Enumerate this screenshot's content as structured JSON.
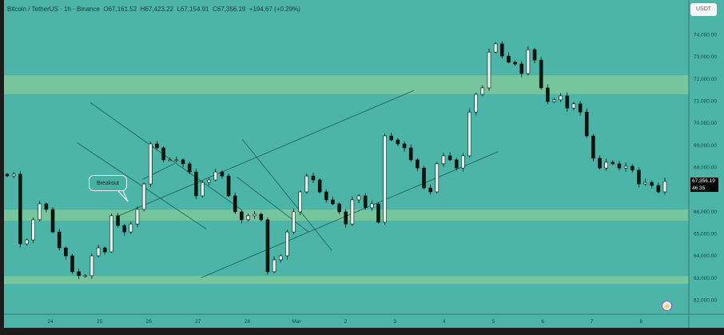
{
  "header": {
    "symbol": "Bitcoin / TetherUS · 1h · Binance",
    "open": "O67,161.52",
    "high": "H67,423.22",
    "low": "L67,154.91",
    "close": "C67,356.19",
    "change": "+194.67 (+0.29%)"
  },
  "currency_button": "USDT",
  "last_price": {
    "price": "67,356.19",
    "countdown": "46:35"
  },
  "annotation": {
    "label": "Breakout"
  },
  "icons": {
    "bolt": "lightning-icon"
  },
  "colors": {
    "background": "#4cb5a7",
    "zone": "#7cc79b",
    "up_candle": "#e6f3ef",
    "down_candle": "#07140f",
    "trendline": "#1f5c55",
    "axis_text": "#0f4a43"
  },
  "chart_data": {
    "type": "candlestick",
    "title": "",
    "ylim": [
      61700,
      74600
    ],
    "grid": false,
    "y_ticks": [
      "74,000.00",
      "73,000.00",
      "72,000.00",
      "71,000.00",
      "70,000.00",
      "69,000.00",
      "68,000.00",
      "66,000.00",
      "65,000.00",
      "64,000.00",
      "63,000.00",
      "62,000.00"
    ],
    "x_ticks": [
      "24",
      "25",
      "26",
      "27",
      "28",
      "Mar",
      "2",
      "3",
      "4",
      "5",
      "6",
      "7",
      "8"
    ],
    "closes": [
      67600,
      67680,
      64530,
      64710,
      65620,
      66340,
      66090,
      65070,
      64350,
      63990,
      63270,
      63090,
      63090,
      63990,
      64350,
      64170,
      65800,
      65360,
      65070,
      65430,
      66090,
      67240,
      69050,
      68870,
      68330,
      68330,
      68330,
      68150,
      67780,
      66700,
      67310,
      67420,
      67780,
      67600,
      66700,
      65980,
      65620,
      65800,
      65870,
      65620,
      63270,
      63810,
      63990,
      65070,
      65980,
      66880,
      67600,
      67420,
      66880,
      66520,
      66340,
      65980,
      65430,
      66520,
      66700,
      66160,
      66340,
      65510,
      69410,
      69230,
      69050,
      68870,
      68330,
      67960,
      67060,
      66880,
      68150,
      68510,
      68330,
      67960,
      68510,
      70490,
      71290,
      71580,
      73200,
      73570,
      73020,
      72740,
      72660,
      72230,
      73310,
      72840,
      71580,
      70960,
      71040,
      71220,
      70670,
      70860,
      70490,
      69410,
      68400,
      67960,
      68220,
      68150,
      67960,
      68040,
      67860,
      67240,
      67310,
      67170,
      66880,
      67356.19
    ],
    "zones": [
      {
        "top": 72150,
        "bottom": 71300
      },
      {
        "top": 66080,
        "bottom": 65580
      },
      {
        "top": 63080,
        "bottom": 62720
      }
    ],
    "trendlines": [
      {
        "from": [
          1.81,
          70920
        ],
        "to": [
          4.9,
          66050
        ]
      },
      {
        "from": [
          1.54,
          69110
        ],
        "to": [
          4.17,
          65200
        ]
      },
      {
        "from": [
          2.35,
          65760
        ],
        "to": [
          8.39,
          71470
        ]
      },
      {
        "from": [
          4.06,
          63000
        ],
        "to": [
          10.1,
          68700
        ]
      },
      {
        "from": [
          4.9,
          69250
        ],
        "to": [
          6.72,
          64230
        ]
      },
      {
        "from": [
          4.79,
          67550
        ],
        "to": [
          6.24,
          65080
        ]
      },
      {
        "from": [
          2.87,
          67440
        ],
        "to": [
          3.52,
          68160
        ]
      }
    ]
  }
}
